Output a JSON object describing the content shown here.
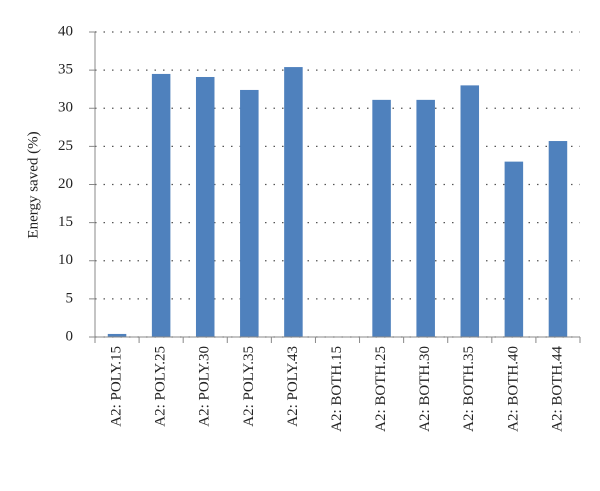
{
  "chart_data": {
    "type": "bar",
    "y_label": "Energy saved (%)",
    "categories": [
      "A2: POLY.15",
      "A2: POLY.25",
      "A2: POLY.30",
      "A2: POLY.35",
      "A2: POLY.43",
      "A2: BOTH.15",
      "A2: BOTH.25",
      "A2: BOTH.30",
      "A2: BOTH.35",
      "A2: BOTH.40",
      "A2: BOTH.44"
    ],
    "values": [
      0.4,
      34.5,
      34.1,
      32.4,
      35.4,
      0,
      31.1,
      31.1,
      33.0,
      23.0,
      25.7
    ],
    "color": "#4f81bd",
    "ylim": [
      0,
      40
    ],
    "yticks": [
      0,
      5,
      10,
      15,
      20,
      25,
      30,
      35,
      40
    ],
    "grid": true
  }
}
